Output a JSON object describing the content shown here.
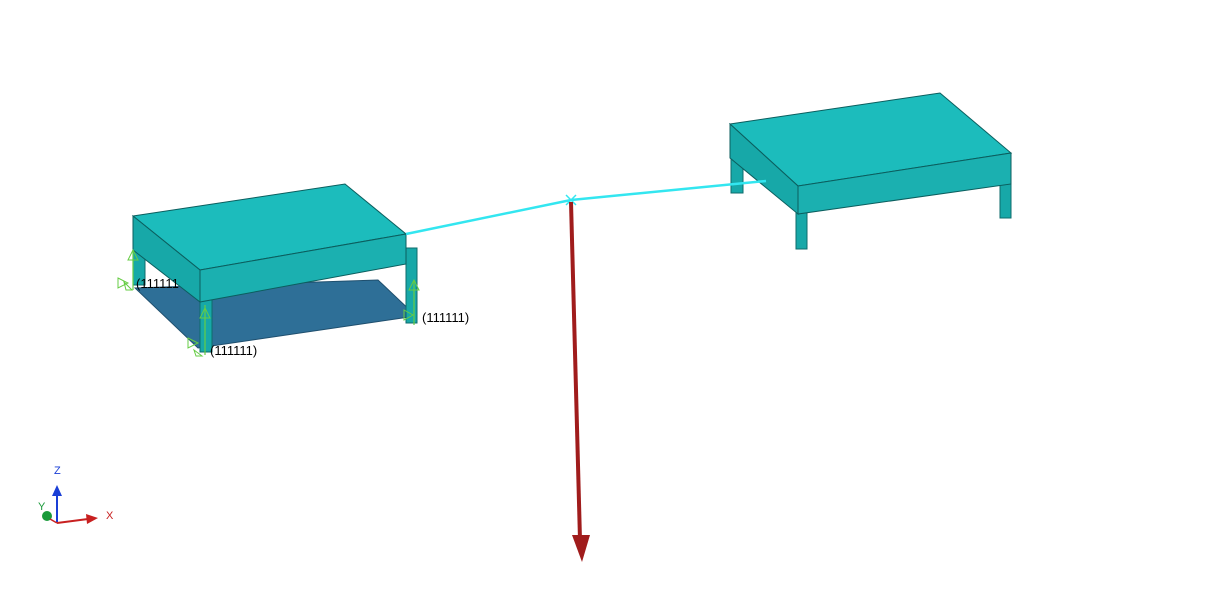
{
  "viewport": {
    "background_color": "#ffffff"
  },
  "model": {
    "table_top_color": "#1cbcbc",
    "table_side_color": "#17a8a8",
    "table_front_color": "#1bb0b0",
    "plate_color": "#2e6f97",
    "constraint_color": "#66cc44",
    "rigid_link_color": "#33e6f0",
    "force_arrow_color": "#a01c1c"
  },
  "constraints": {
    "labels": [
      {
        "id": "left-leg-back",
        "text": "(111111"
      },
      {
        "id": "right-leg-front",
        "text": "(111111)"
      },
      {
        "id": "center-leg-front",
        "text": "(111111)"
      }
    ]
  },
  "axis_triad": {
    "z_label": "Z",
    "y_label": "Y",
    "x_label": "X",
    "z_color": "#1a3fd6",
    "y_color": "#1a9a3a",
    "x_color": "#c82020"
  }
}
